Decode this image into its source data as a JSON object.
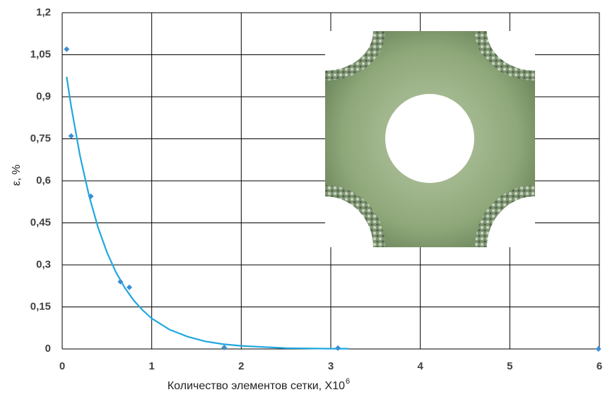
{
  "chart_data": {
    "type": "scatter",
    "x_label": "Количество элементов сетки,  X10",
    "x_label_sup": "6",
    "y_label": "ε, %",
    "x": [
      0.05,
      0.1,
      0.32,
      0.65,
      0.75,
      1.81,
      3.08,
      5.99
    ],
    "values": [
      1.07,
      0.76,
      0.545,
      0.24,
      0.22,
      0.005,
      0.003,
      0.0
    ],
    "color": "#3b8fd4",
    "fit": {
      "x": [
        0.05,
        0.1,
        0.2,
        0.3,
        0.4,
        0.5,
        0.6,
        0.7,
        0.8,
        0.9,
        1.0,
        1.2,
        1.4,
        1.6,
        1.8,
        2.0,
        2.5,
        3.0,
        3.2
      ],
      "values": [
        0.971,
        0.866,
        0.688,
        0.547,
        0.434,
        0.345,
        0.274,
        0.218,
        0.173,
        0.138,
        0.109,
        0.069,
        0.044,
        0.027,
        0.017,
        0.011,
        0.003,
        0.001,
        0.001
      ],
      "color": "#1fa7e0"
    },
    "xlim": [
      0,
      6
    ],
    "xticks": [
      0,
      1,
      2,
      3,
      4,
      5,
      6
    ],
    "ylim": [
      0,
      1.2
    ],
    "yticks": [
      0,
      {
        "value": 0.15,
        "label": "0,15"
      },
      {
        "value": 0.3,
        "label": "0,3"
      },
      {
        "value": 0.45,
        "label": "0,45"
      },
      {
        "value": 0.6,
        "label": "0,6"
      },
      {
        "value": 0.75,
        "label": "0,75"
      },
      {
        "value": 0.9,
        "label": "0,9"
      },
      {
        "value": 1.05,
        "label": "1,05"
      },
      {
        "value": 1.2,
        "label": "1,2"
      }
    ],
    "grid": true
  }
}
